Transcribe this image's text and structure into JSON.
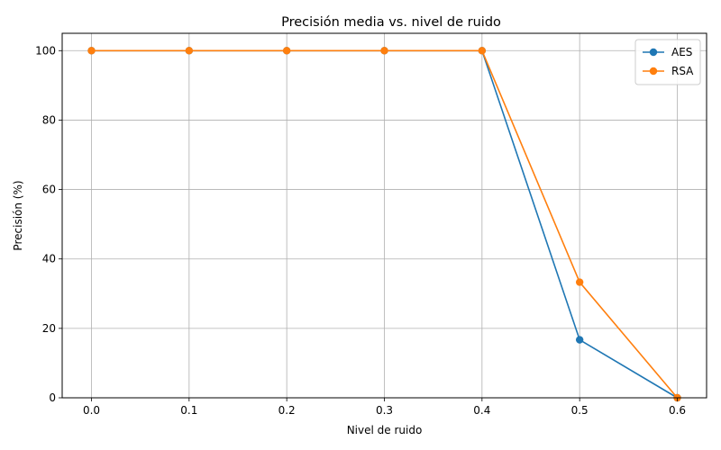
{
  "chart_data": {
    "type": "line",
    "title": "Precisión media vs. nivel de ruido",
    "xlabel": "Nivel de ruido",
    "ylabel": "Precisión (%)",
    "x": [
      0.0,
      0.1,
      0.2,
      0.3,
      0.4,
      0.5,
      0.6
    ],
    "x_tick_labels": [
      "0.0",
      "0.1",
      "0.2",
      "0.3",
      "0.4",
      "0.5",
      "0.6"
    ],
    "y_ticks": [
      0,
      20,
      40,
      60,
      80,
      100
    ],
    "y_tick_labels": [
      "0",
      "20",
      "40",
      "60",
      "80",
      "100"
    ],
    "xlim": [
      -0.03,
      0.63
    ],
    "ylim": [
      0,
      105
    ],
    "grid": true,
    "legend_position": "top-right",
    "series": [
      {
        "name": "AES",
        "color": "#1f77b4",
        "values": [
          100,
          100,
          100,
          100,
          100,
          16.7,
          0
        ]
      },
      {
        "name": "RSA",
        "color": "#ff7f0e",
        "values": [
          100,
          100,
          100,
          100,
          100,
          33.3,
          0
        ]
      }
    ]
  }
}
